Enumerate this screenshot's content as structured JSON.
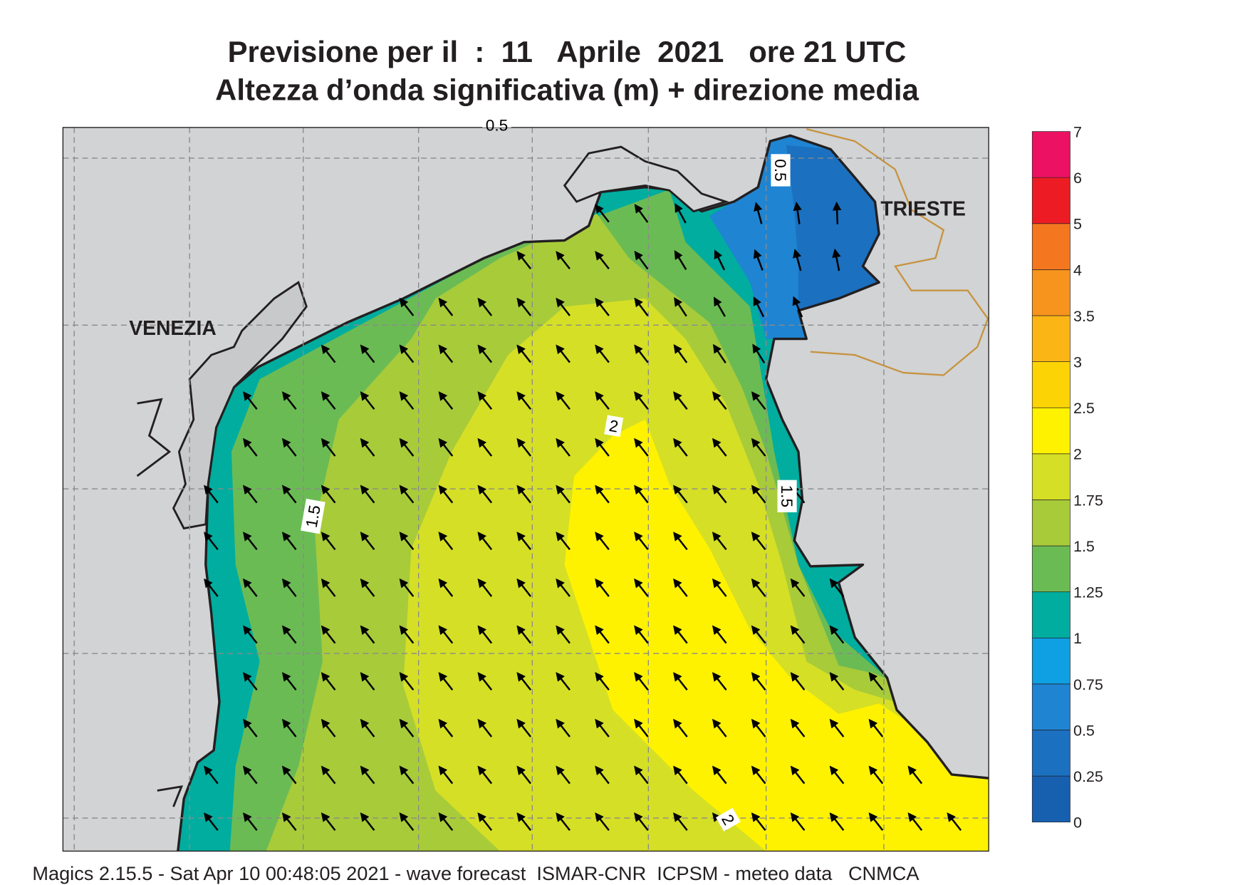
{
  "header": {
    "title": "Previsione per il  :  11   Aprile  2021   ore 21 UTC",
    "subtitle": "Altezza d’onda significativa (m) + direzione media"
  },
  "map": {
    "places": [
      "VENEZIA",
      "TRIESTE"
    ],
    "contour_labels": [
      "0.5",
      "0.5",
      "1.5",
      "1.5",
      "2",
      "2"
    ]
  },
  "colorbar": {
    "labels": [
      "0",
      "0.25",
      "0.5",
      "0.75",
      "1",
      "1.25",
      "1.5",
      "1.75",
      "2",
      "2.5",
      "3",
      "3.5",
      "4",
      "5",
      "6",
      "7"
    ],
    "colors": [
      "#1760b0",
      "#1b70c0",
      "#1f84d2",
      "#0ea0e2",
      "#00ad9f",
      "#6bbb54",
      "#a8cb3a",
      "#d5df25",
      "#fff200",
      "#fcd406",
      "#fbb616",
      "#f7941d",
      "#f47720",
      "#ed1c24",
      "#ec1163"
    ]
  },
  "footer": "Magics 2.15.5 - Sat Apr 10 00:48:05 2021 - wave forecast  ISMAR-CNR  ICPSM - meteo data   CNMCA"
}
